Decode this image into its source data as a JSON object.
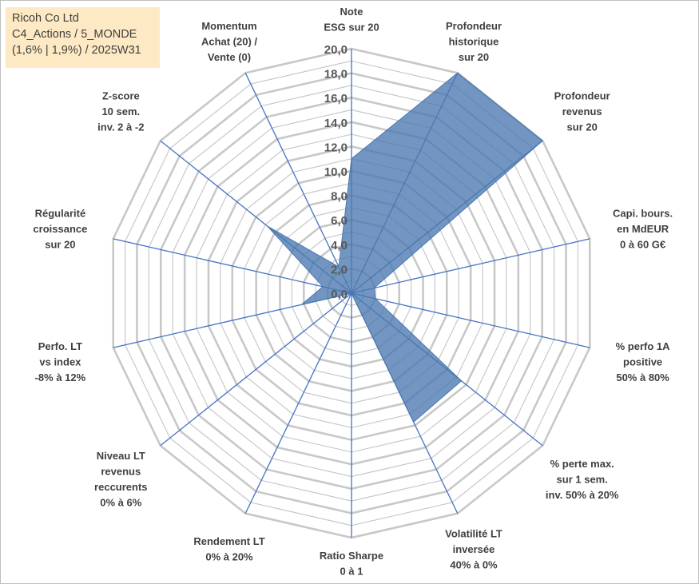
{
  "title_box": {
    "line1": "Ricoh Co Ltd",
    "line2": "C4_Actions / 5_MONDE",
    "line3": "(1,6% | 1,9%) / 2025W31"
  },
  "colors": {
    "grid": "#c8c8c8",
    "spoke": "#4472c4",
    "fill": "#4a78b0",
    "title_box_bg": "#fde9c3"
  },
  "chart_data": {
    "type": "radar",
    "axes": [
      [
        "Note",
        "ESG sur 20"
      ],
      [
        "Profondeur",
        "historique",
        "sur 20"
      ],
      [
        "Profondeur",
        "revenus",
        "sur 20"
      ],
      [
        "Capi. bours.",
        "en MdEUR",
        "0 à 60 G€"
      ],
      [
        "% perfo 1A",
        "positive",
        "50% à 80%"
      ],
      [
        "% perte max.",
        "sur 1 sem.",
        "inv. 50% à 20%"
      ],
      [
        "Volatilité LT",
        "inversée",
        "40% à 0%"
      ],
      [
        "Ratio Sharpe",
        "0 à 1"
      ],
      [
        "Rendement LT",
        "0% à 20%"
      ],
      [
        "Niveau LT",
        "revenus",
        "reccurents",
        "0% à 6%"
      ],
      [
        "Perfo. LT",
        "vs index",
        "-8% à 12%"
      ],
      [
        "Régularité",
        "croissance",
        "sur 20"
      ],
      [
        "Z-score",
        "10 sem.",
        "inv. 2 à -2"
      ],
      [
        "Momentum",
        "Achat (20) /",
        "Vente (0)"
      ]
    ],
    "values": [
      11.0,
      20.0,
      20.0,
      1.9,
      2.0,
      11.5,
      11.7,
      0.0,
      0.0,
      0.0,
      4.2,
      2.4,
      8.8,
      2.4
    ],
    "r_min": 0,
    "r_max": 20,
    "ticks": [
      "0,0",
      "2,0",
      "4,0",
      "6,0",
      "8,0",
      "10,0",
      "12,0",
      "14,0",
      "16,0",
      "18,0",
      "20,0"
    ],
    "grid": true,
    "legend": "none"
  }
}
